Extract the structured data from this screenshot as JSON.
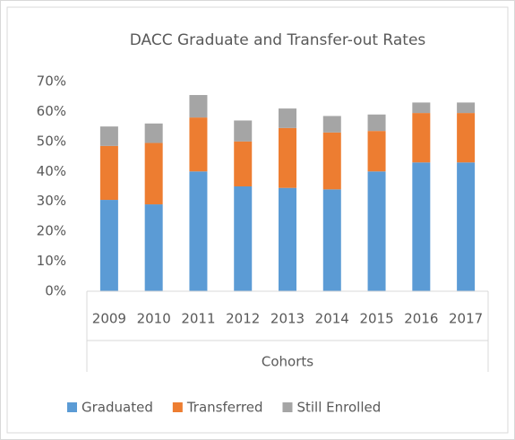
{
  "chart_data": {
    "type": "bar",
    "stacked": true,
    "title": "DACC Graduate and Transfer-out Rates",
    "x_label": "Cohorts",
    "categories": [
      "2009",
      "2010",
      "2011",
      "2012",
      "2013",
      "2014",
      "2015",
      "2016",
      "2017"
    ],
    "series": [
      {
        "name": "Graduated",
        "color": "#5b9bd5",
        "values": [
          30.5,
          29,
          40,
          35,
          34.5,
          34,
          40,
          43,
          43
        ]
      },
      {
        "name": "Transferred",
        "color": "#ed7d31",
        "values": [
          18,
          20.5,
          18,
          15,
          20,
          19,
          13.5,
          16.5,
          16.5
        ]
      },
      {
        "name": "Still Enrolled",
        "color": "#a5a5a5",
        "values": [
          6.5,
          6.5,
          7.5,
          7,
          6.5,
          5.5,
          5.5,
          3.5,
          3.5
        ]
      }
    ],
    "ylim": [
      0,
      70
    ],
    "yticks": [
      {
        "value": 0,
        "label": "0%"
      },
      {
        "value": 10,
        "label": "10%"
      },
      {
        "value": 20,
        "label": "20%"
      },
      {
        "value": 30,
        "label": "30%"
      },
      {
        "value": 40,
        "label": "40%"
      },
      {
        "value": 50,
        "label": "50%"
      },
      {
        "value": 60,
        "label": "60%"
      },
      {
        "value": 70,
        "label": "70%"
      }
    ],
    "grid": false,
    "legend": "bottom"
  }
}
